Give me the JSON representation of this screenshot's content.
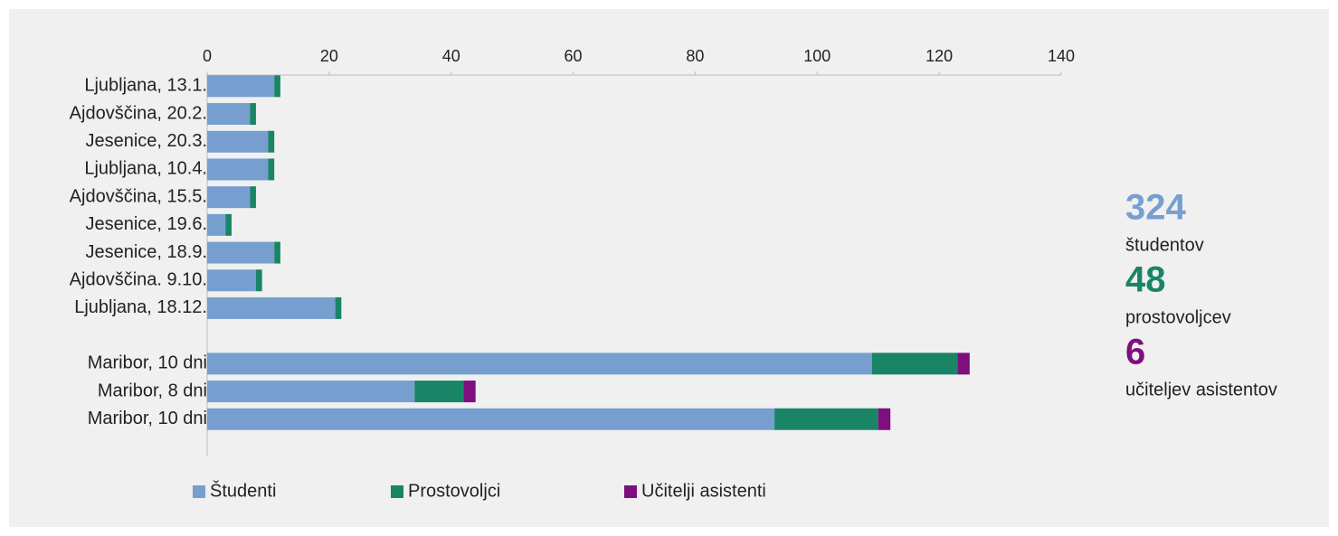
{
  "chart_data": {
    "type": "stacked-barh",
    "categories": [
      "Ljubljana, 13.1.",
      "Ajdovščina, 20.2.",
      "Jesenice, 20.3.",
      "Ljubljana, 10.4.",
      "Ajdovščina, 15.5.",
      "Jesenice, 19.6.",
      "Jesenice, 18.9.",
      "Ajdovščina. 9.10.",
      "Ljubljana, 18.12.",
      null,
      "Maribor, 10 dni",
      "Maribor, 8 dni",
      "Maribor, 10 dni"
    ],
    "series": [
      {
        "name": "Študenti",
        "color": "#769fd0",
        "values": [
          11,
          7,
          10,
          10,
          7,
          3,
          11,
          8,
          21,
          null,
          109,
          34,
          93
        ]
      },
      {
        "name": "Prostovoljci",
        "color": "#1a8566",
        "values": [
          1,
          1,
          1,
          1,
          1,
          1,
          1,
          1,
          1,
          null,
          14,
          8,
          17
        ]
      },
      {
        "name": "Učitelji asistenti",
        "color": "#7f0e7f",
        "values": [
          0,
          0,
          0,
          0,
          0,
          0,
          0,
          0,
          0,
          null,
          2,
          2,
          2
        ]
      }
    ],
    "xlim": [
      0,
      140
    ],
    "xticks": [
      0,
      20,
      40,
      60,
      80,
      100,
      120,
      140
    ],
    "legend": "bottom",
    "annotations": [
      {
        "value": 324,
        "label": "študentov",
        "color": "#769fd0"
      },
      {
        "value": 48,
        "label": "prostovoljcev",
        "color": "#1a8566"
      },
      {
        "value": 6,
        "label": "učiteljev asistentov",
        "color": "#7f0e7f"
      }
    ]
  }
}
